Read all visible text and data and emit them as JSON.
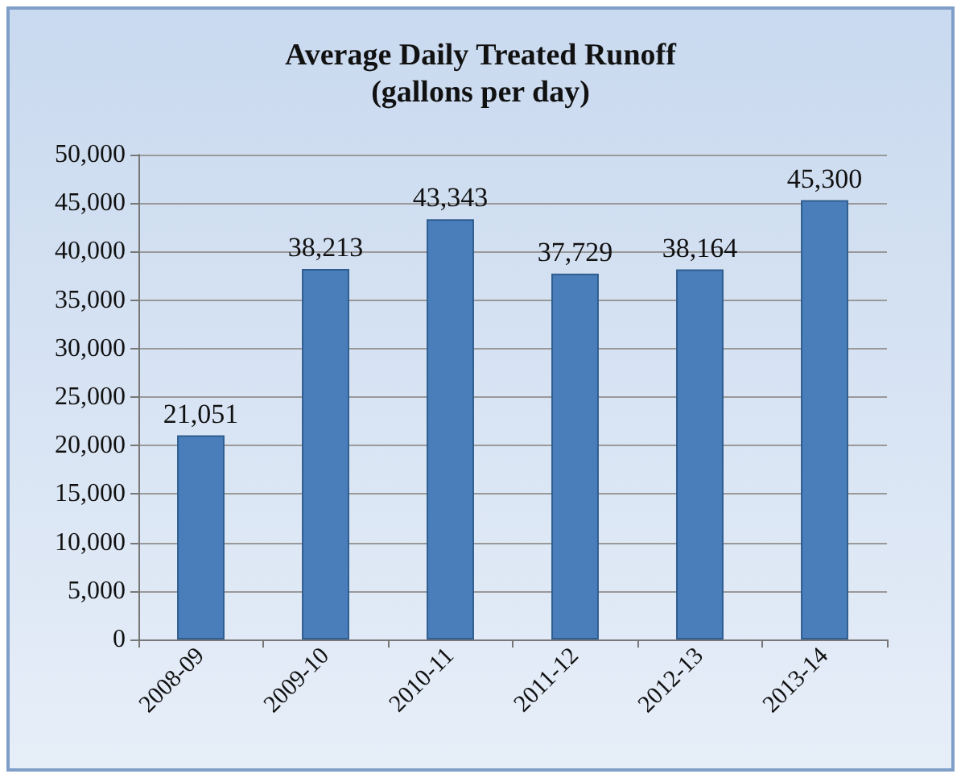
{
  "chart_data": {
    "type": "bar",
    "title": "Average Daily Treated Runoff\n(gallons per day)",
    "categories": [
      "2008-09",
      "2009-10",
      "2010-11",
      "2011-12",
      "2012-13",
      "2013-14"
    ],
    "values": [
      21051,
      38213,
      43343,
      37729,
      38164,
      45300
    ],
    "color": "#4a7ebb",
    "value_labels": [
      "21,051",
      "38,213",
      "43,343",
      "37,729",
      "38,164",
      "45,300"
    ],
    "ylim": [
      0,
      50000
    ],
    "yticks": [
      0,
      {
        "value": 5000,
        "label": "5,000"
      },
      {
        "value": 10000,
        "label": "10,000"
      },
      {
        "value": 15000,
        "label": "15,000"
      },
      {
        "value": 20000,
        "label": "20,000"
      },
      {
        "value": 25000,
        "label": "25,000"
      },
      {
        "value": 30000,
        "label": "30,000"
      },
      {
        "value": 35000,
        "label": "35,000"
      },
      {
        "value": 40000,
        "label": "40,000"
      },
      {
        "value": 45000,
        "label": "45,000"
      },
      {
        "value": 50000,
        "label": "50,000"
      }
    ],
    "grid": "y"
  }
}
